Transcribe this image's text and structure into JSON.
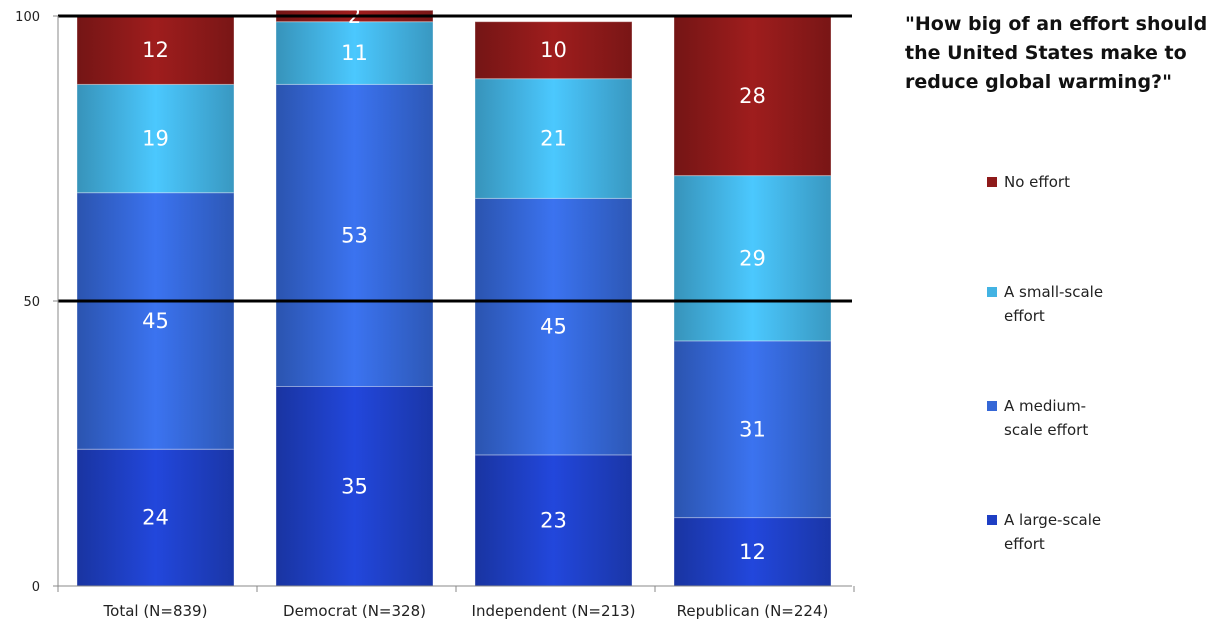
{
  "chart_data": {
    "type": "bar",
    "stacked": true,
    "title": "\"How big of an effort should the United States make to reduce global warming?\"",
    "title_lines": [
      "\"How big of an effort should",
      "the United States make to",
      "reduce global warming?\""
    ],
    "categories": [
      "Total (N=839)",
      "Democrat (N=328)",
      "Independent (N=213)",
      "Republican (N=224)"
    ],
    "series": [
      {
        "name": "A large-scale effort",
        "legend_lines": [
          "A large-scale",
          "effort"
        ],
        "color": "#1e3fc4",
        "values": [
          24,
          35,
          23,
          12
        ]
      },
      {
        "name": "A medium-scale effort",
        "legend_lines": [
          "A medium-",
          "scale effort"
        ],
        "color": "#3567d6",
        "values": [
          45,
          53,
          45,
          31
        ]
      },
      {
        "name": "A small-scale effort",
        "legend_lines": [
          "A small-scale",
          "effort"
        ],
        "color": "#43b3e3",
        "values": [
          19,
          11,
          21,
          29
        ]
      },
      {
        "name": "No effort",
        "legend_lines": [
          "No effort"
        ],
        "color": "#8e1a1a",
        "values": [
          12,
          2,
          10,
          28
        ]
      }
    ],
    "ylim": [
      0,
      100
    ],
    "yticks": [
      0,
      50,
      100
    ],
    "gridlines": [
      50,
      100
    ],
    "legend_position": "right"
  }
}
